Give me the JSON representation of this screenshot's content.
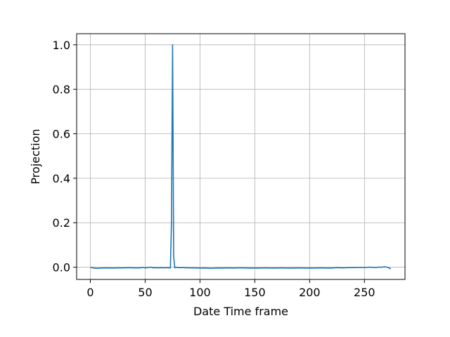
{
  "chart_data": {
    "type": "line",
    "title": "",
    "xlabel": "Date Time frame",
    "ylabel": "Projection",
    "xlim": [
      -12.5,
      287
    ],
    "ylim": [
      -0.055,
      1.05
    ],
    "grid": true,
    "x_ticks": [
      0,
      50,
      100,
      150,
      200,
      250
    ],
    "x_tick_labels": [
      "0",
      "50",
      "100",
      "150",
      "200",
      "250"
    ],
    "y_ticks": [
      0.0,
      0.2,
      0.4,
      0.6,
      0.8,
      1.0
    ],
    "y_tick_labels": [
      "0.0",
      "0.2",
      "0.4",
      "0.6",
      "0.8",
      "1.0"
    ],
    "series": [
      {
        "color": "#1f77b4",
        "x": [
          0,
          3,
          6,
          10,
          15,
          20,
          25,
          30,
          35,
          40,
          45,
          48,
          50,
          52,
          55,
          58,
          60,
          62,
          65,
          68,
          70,
          72,
          73,
          74,
          75,
          76,
          77,
          78,
          80,
          85,
          90,
          95,
          100,
          105,
          110,
          115,
          120,
          125,
          130,
          135,
          140,
          145,
          150,
          155,
          160,
          165,
          170,
          175,
          180,
          185,
          190,
          195,
          200,
          205,
          210,
          215,
          220,
          225,
          230,
          235,
          240,
          245,
          250,
          255,
          260,
          263,
          266,
          268,
          270,
          272,
          274
        ],
        "y": [
          0.0,
          -0.004,
          -0.005,
          -0.004,
          -0.003,
          -0.004,
          -0.003,
          -0.003,
          -0.002,
          -0.003,
          -0.003,
          -0.001,
          -0.003,
          -0.002,
          0.0,
          -0.003,
          -0.002,
          -0.003,
          -0.002,
          -0.003,
          -0.002,
          -0.003,
          -0.003,
          0.2,
          1.0,
          0.05,
          -0.003,
          0.0,
          -0.002,
          -0.002,
          -0.003,
          -0.003,
          -0.004,
          -0.004,
          -0.005,
          -0.004,
          -0.004,
          -0.003,
          -0.004,
          -0.003,
          -0.003,
          -0.004,
          -0.004,
          -0.004,
          -0.003,
          -0.004,
          -0.004,
          -0.003,
          -0.004,
          -0.004,
          -0.003,
          -0.004,
          -0.004,
          -0.004,
          -0.003,
          -0.004,
          -0.004,
          -0.002,
          -0.003,
          -0.002,
          -0.002,
          -0.001,
          -0.001,
          0.0,
          -0.001,
          0.0,
          0.0,
          0.002,
          0.001,
          -0.002,
          -0.008
        ]
      }
    ]
  }
}
